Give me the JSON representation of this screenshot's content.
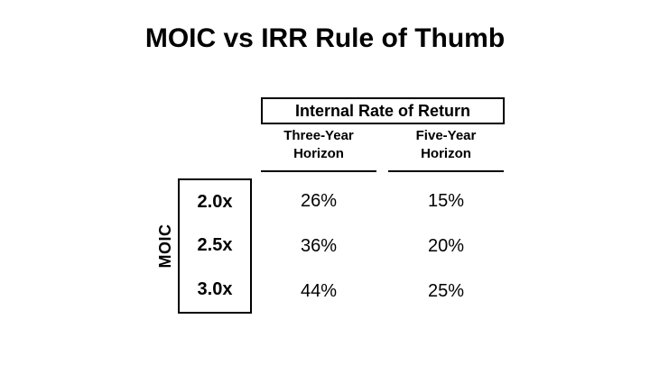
{
  "title": "MOIC vs IRR Rule of Thumb",
  "table": {
    "group_header": "Internal Rate of Return",
    "row_group_label": "MOIC",
    "col_headers": [
      {
        "line1": "Three-Year",
        "line2": "Horizon"
      },
      {
        "line1": "Five-Year",
        "line2": "Horizon"
      }
    ],
    "rows": [
      {
        "moic": "2.0x",
        "values": [
          "26%",
          "15%"
        ]
      },
      {
        "moic": "2.5x",
        "values": [
          "36%",
          "20%"
        ]
      },
      {
        "moic": "3.0x",
        "values": [
          "44%",
          "25%"
        ]
      }
    ]
  },
  "colors": {
    "background": "#ffffff",
    "text": "#000000",
    "border": "#000000"
  }
}
